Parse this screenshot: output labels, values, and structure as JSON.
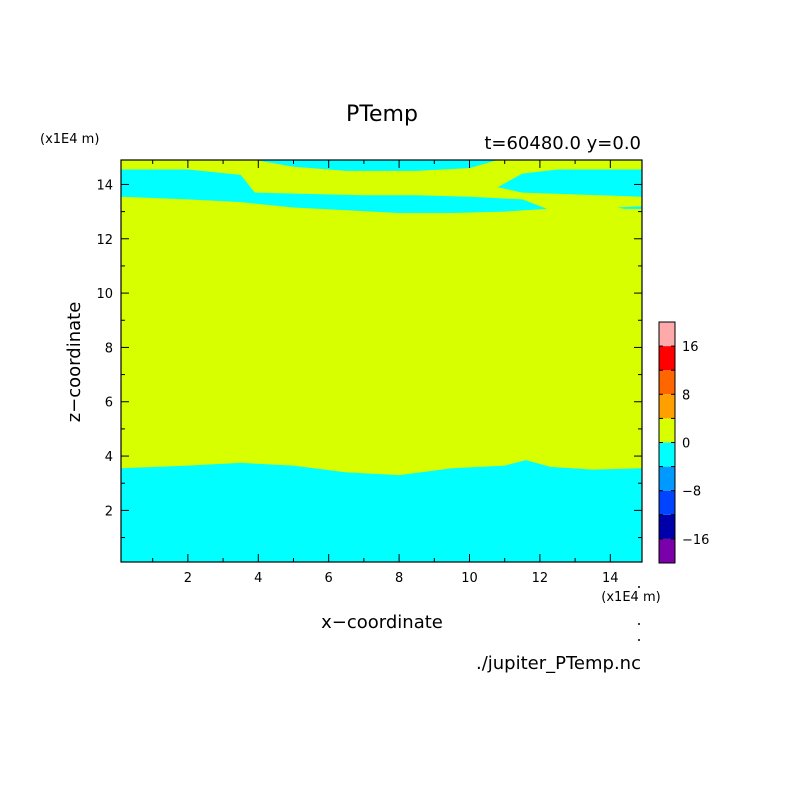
{
  "chart_data": {
    "type": "heatmap",
    "title": "PTemp",
    "subtitle": "t=60480.0 y=0.0",
    "xlabel": "x−coordinate",
    "ylabel": "z−coordinate",
    "x_unit": "(x1E4 m)",
    "y_unit": "(x1E4 m)",
    "source": "./jupiter_PTemp.nc",
    "xlim": [
      0.1,
      14.9
    ],
    "ylim": [
      0.1,
      14.9
    ],
    "x_ticks": [
      2,
      4,
      6,
      8,
      10,
      12,
      14
    ],
    "y_ticks": [
      2,
      4,
      6,
      8,
      10,
      12,
      14
    ],
    "grid": false,
    "colorbar": {
      "levels": [
        -20,
        -16,
        -12,
        -8,
        -4,
        0,
        4,
        8,
        12,
        16,
        20
      ],
      "colors": [
        "#7a00aa",
        "#0000aa",
        "#0044ff",
        "#0099ff",
        "#00ffff",
        "#d8ff00",
        "#ffa000",
        "#ff6600",
        "#ff0000",
        "#ffaaaa"
      ],
      "tick_values": [
        -16,
        -8,
        0,
        8,
        16
      ],
      "tick_labels": [
        "−16",
        "−8",
        "0",
        "8",
        "16"
      ]
    },
    "regions": {
      "lower_boundary_z": [
        [
          0.1,
          3.55
        ],
        [
          2,
          3.65
        ],
        [
          3.5,
          3.75
        ],
        [
          5,
          3.65
        ],
        [
          6.5,
          3.4
        ],
        [
          8,
          3.3
        ],
        [
          9.5,
          3.55
        ],
        [
          11,
          3.65
        ],
        [
          11.6,
          3.85
        ],
        [
          12.3,
          3.6
        ],
        [
          13.5,
          3.5
        ],
        [
          14.9,
          3.55
        ]
      ],
      "upper_layer_bottom_z": [
        [
          0.1,
          13.55
        ],
        [
          2,
          13.45
        ],
        [
          3.5,
          13.35
        ],
        [
          5,
          13.15
        ],
        [
          6.5,
          13.05
        ],
        [
          8,
          12.95
        ],
        [
          9.5,
          12.95
        ],
        [
          11,
          13.0
        ],
        [
          12.2,
          13.1
        ]
      ],
      "upper_layer_top_z": [
        [
          0.1,
          14.55
        ],
        [
          2,
          14.55
        ],
        [
          3.5,
          14.35
        ],
        [
          3.9,
          13.7
        ],
        [
          5.5,
          13.65
        ],
        [
          7,
          13.6
        ],
        [
          8.5,
          13.6
        ],
        [
          10,
          13.55
        ],
        [
          11.5,
          13.45
        ],
        [
          12.2,
          13.1
        ]
      ],
      "right_top_region_z": [
        [
          10.8,
          13.9
        ],
        [
          11.5,
          14.4
        ],
        [
          12.5,
          14.55
        ],
        [
          14.9,
          14.55
        ],
        [
          14.9,
          13.55
        ],
        [
          11.5,
          13.7
        ]
      ],
      "small_patch_right_z": [
        [
          14.2,
          13.15
        ],
        [
          14.9,
          13.2
        ],
        [
          14.9,
          13.1
        ],
        [
          14.4,
          13.1
        ]
      ],
      "top_strip_z": [
        [
          3.9,
          14.9
        ],
        [
          5,
          14.65
        ],
        [
          6.5,
          14.5
        ],
        [
          8.5,
          14.5
        ],
        [
          10,
          14.6
        ],
        [
          10.8,
          14.9
        ]
      ]
    }
  }
}
